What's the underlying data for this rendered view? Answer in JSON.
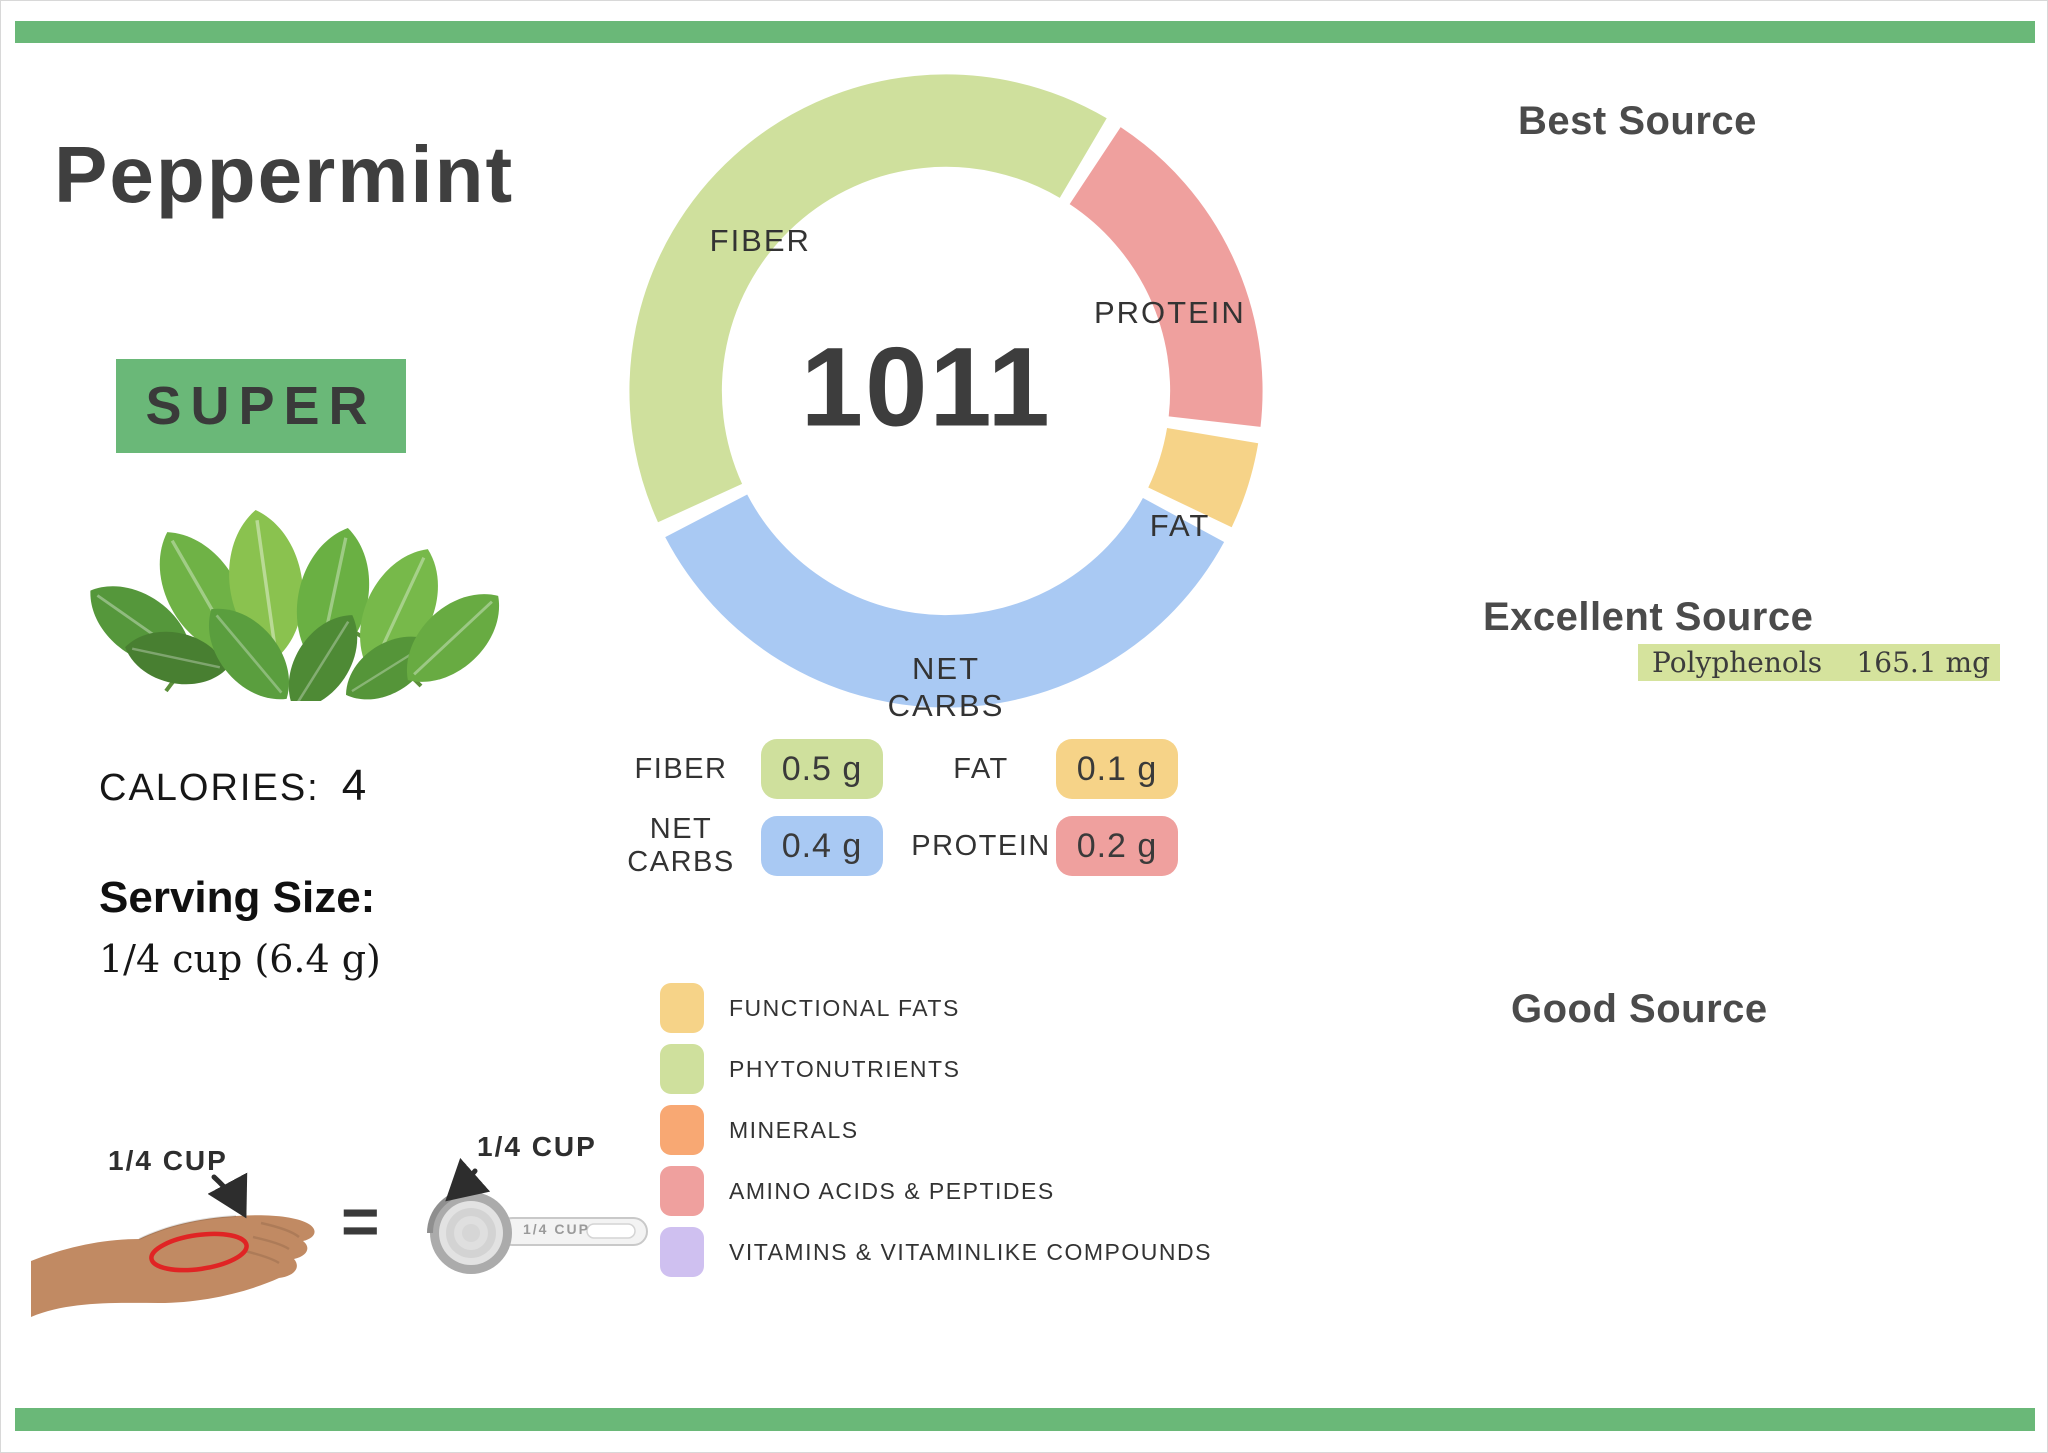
{
  "accent_color": "#6ab878",
  "header": {
    "title": "Peppermint",
    "badge": "SUPER"
  },
  "stats": {
    "calories_label": "CALORIES:",
    "calories_value": "4",
    "serving_size_label": "Serving Size:",
    "serving_size_value": "1/4 cup (6.4 g)"
  },
  "chart_data": {
    "type": "pie",
    "title": "Macronutrient breakdown donut (nutrivore score in center)",
    "center_value": "1011",
    "unit": "g",
    "legend_position": "labels-on-ring",
    "start_angle_deg": 32,
    "gap_deg": 3,
    "segments": [
      {
        "id": "protein",
        "label": "PROTEIN",
        "value": 0.2,
        "display": "0.2 g",
        "angle_deg": 66,
        "color": "#efa09e"
      },
      {
        "id": "fat",
        "label": "FAT",
        "value": 0.1,
        "display": "0.1 g",
        "angle_deg": 19,
        "color": "#f6d388"
      },
      {
        "id": "net-carbs",
        "label": "NET CARBS",
        "value": 0.4,
        "display": "0.4 g",
        "angle_deg": 127,
        "color": "#a9c9f3"
      },
      {
        "id": "fiber",
        "label": "FIBER",
        "value": 0.5,
        "display": "0.5 g",
        "angle_deg": 148,
        "color": "#cfe09d"
      }
    ]
  },
  "legend": {
    "items": [
      {
        "label": "FUNCTIONAL FATS",
        "color": "#f6d388"
      },
      {
        "label": "PHYTONUTRIENTS",
        "color": "#cfe09d"
      },
      {
        "label": "MINERALS",
        "color": "#f8a873"
      },
      {
        "label": "AMINO ACIDS & PEPTIDES",
        "color": "#efa09e"
      },
      {
        "label": "VITAMINS & VITAMINLIKE COMPOUNDS",
        "color": "#cfc0f0"
      }
    ]
  },
  "sources": {
    "best_heading": "Best Source",
    "excellent_heading": "Excellent Source",
    "good_heading": "Good Source",
    "excellent_items": [
      {
        "name": "Polyphenols",
        "amount": "165.1 mg",
        "highlight_color": "#d5e39d"
      }
    ]
  },
  "serving_visual": {
    "hand_label": "1/4 CUP",
    "cup_label": "1/4 CUP",
    "cup_engraving": "1/4 CUP",
    "equals": "="
  }
}
